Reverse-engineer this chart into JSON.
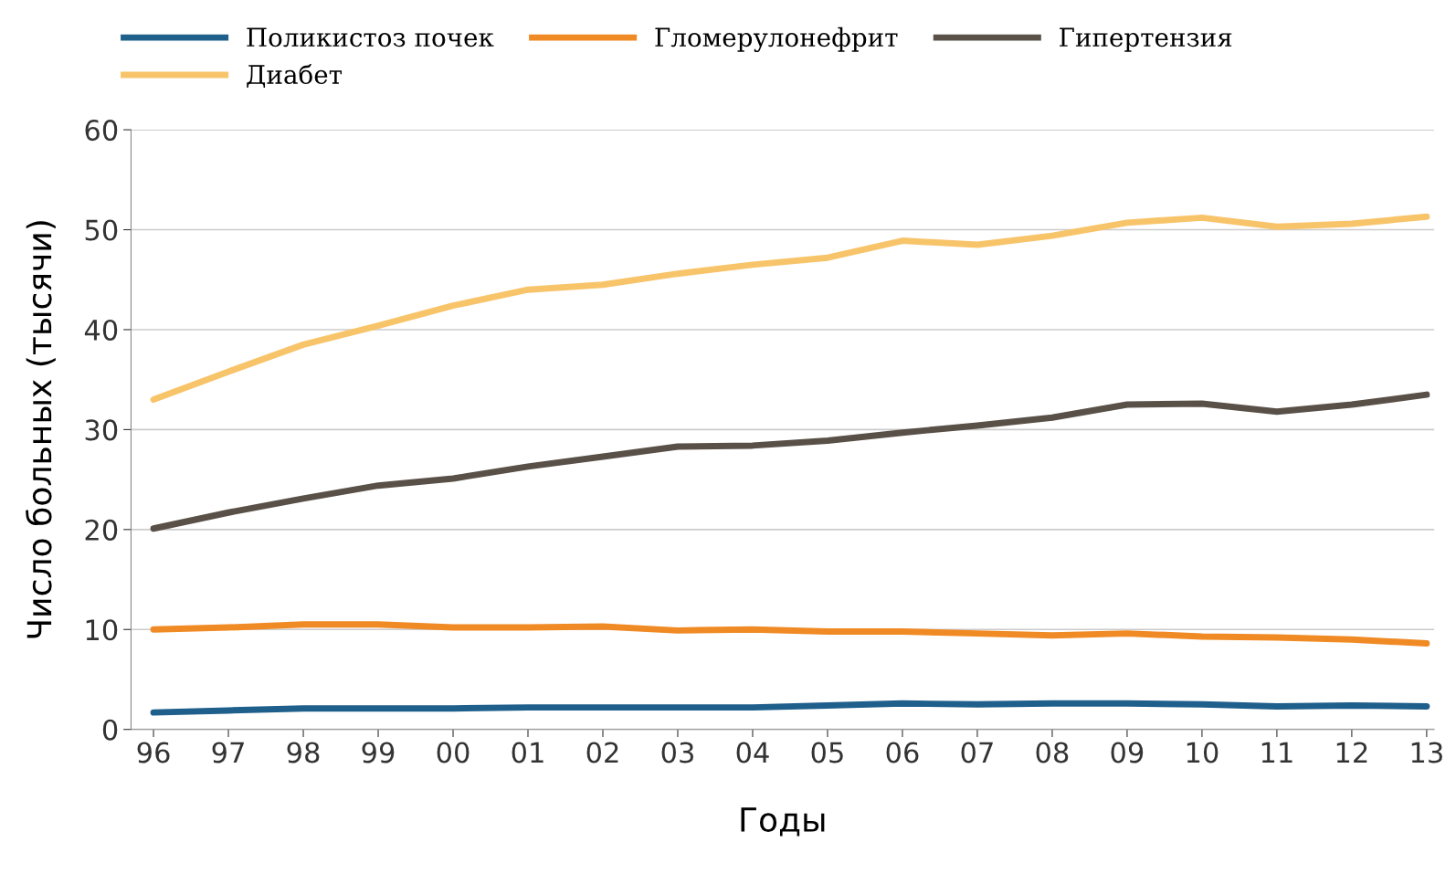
{
  "chart_data": {
    "type": "line",
    "xlabel": "Годы",
    "ylabel": "Число больных (тысячи)",
    "categories": [
      "96",
      "97",
      "98",
      "99",
      "00",
      "01",
      "02",
      "03",
      "04",
      "05",
      "06",
      "07",
      "08",
      "09",
      "10",
      "11",
      "12",
      "13"
    ],
    "series": [
      {
        "name": "Поликистоз почек",
        "color": "#1f5f8b",
        "values": [
          1.7,
          1.9,
          2.1,
          2.1,
          2.1,
          2.2,
          2.2,
          2.2,
          2.2,
          2.4,
          2.6,
          2.5,
          2.6,
          2.6,
          2.5,
          2.3,
          2.4,
          2.3
        ]
      },
      {
        "name": "Диабет",
        "color": "#f8c46a",
        "values": [
          33.0,
          35.8,
          38.5,
          40.4,
          42.4,
          44.0,
          44.5,
          45.6,
          46.5,
          47.2,
          48.9,
          48.5,
          49.4,
          50.7,
          51.2,
          50.3,
          50.6,
          51.3
        ]
      },
      {
        "name": "Гломерулонефрит",
        "color": "#f08a24",
        "values": [
          10.0,
          10.2,
          10.5,
          10.5,
          10.2,
          10.2,
          10.3,
          9.9,
          10.0,
          9.8,
          9.8,
          9.6,
          9.4,
          9.6,
          9.3,
          9.2,
          9.0,
          8.6
        ]
      },
      {
        "name": "Гипертензия",
        "color": "#595048",
        "values": [
          20.1,
          21.7,
          23.1,
          24.4,
          25.1,
          26.3,
          27.3,
          28.3,
          28.4,
          28.9,
          29.7,
          30.4,
          31.2,
          32.5,
          32.6,
          31.8,
          32.5,
          33.5
        ]
      }
    ],
    "ylim": [
      0,
      60
    ],
    "yticks": [
      0,
      10,
      20,
      30,
      40,
      50,
      60
    ],
    "grid": "y",
    "legend": "top",
    "marker": "none",
    "line_style": "solid"
  }
}
